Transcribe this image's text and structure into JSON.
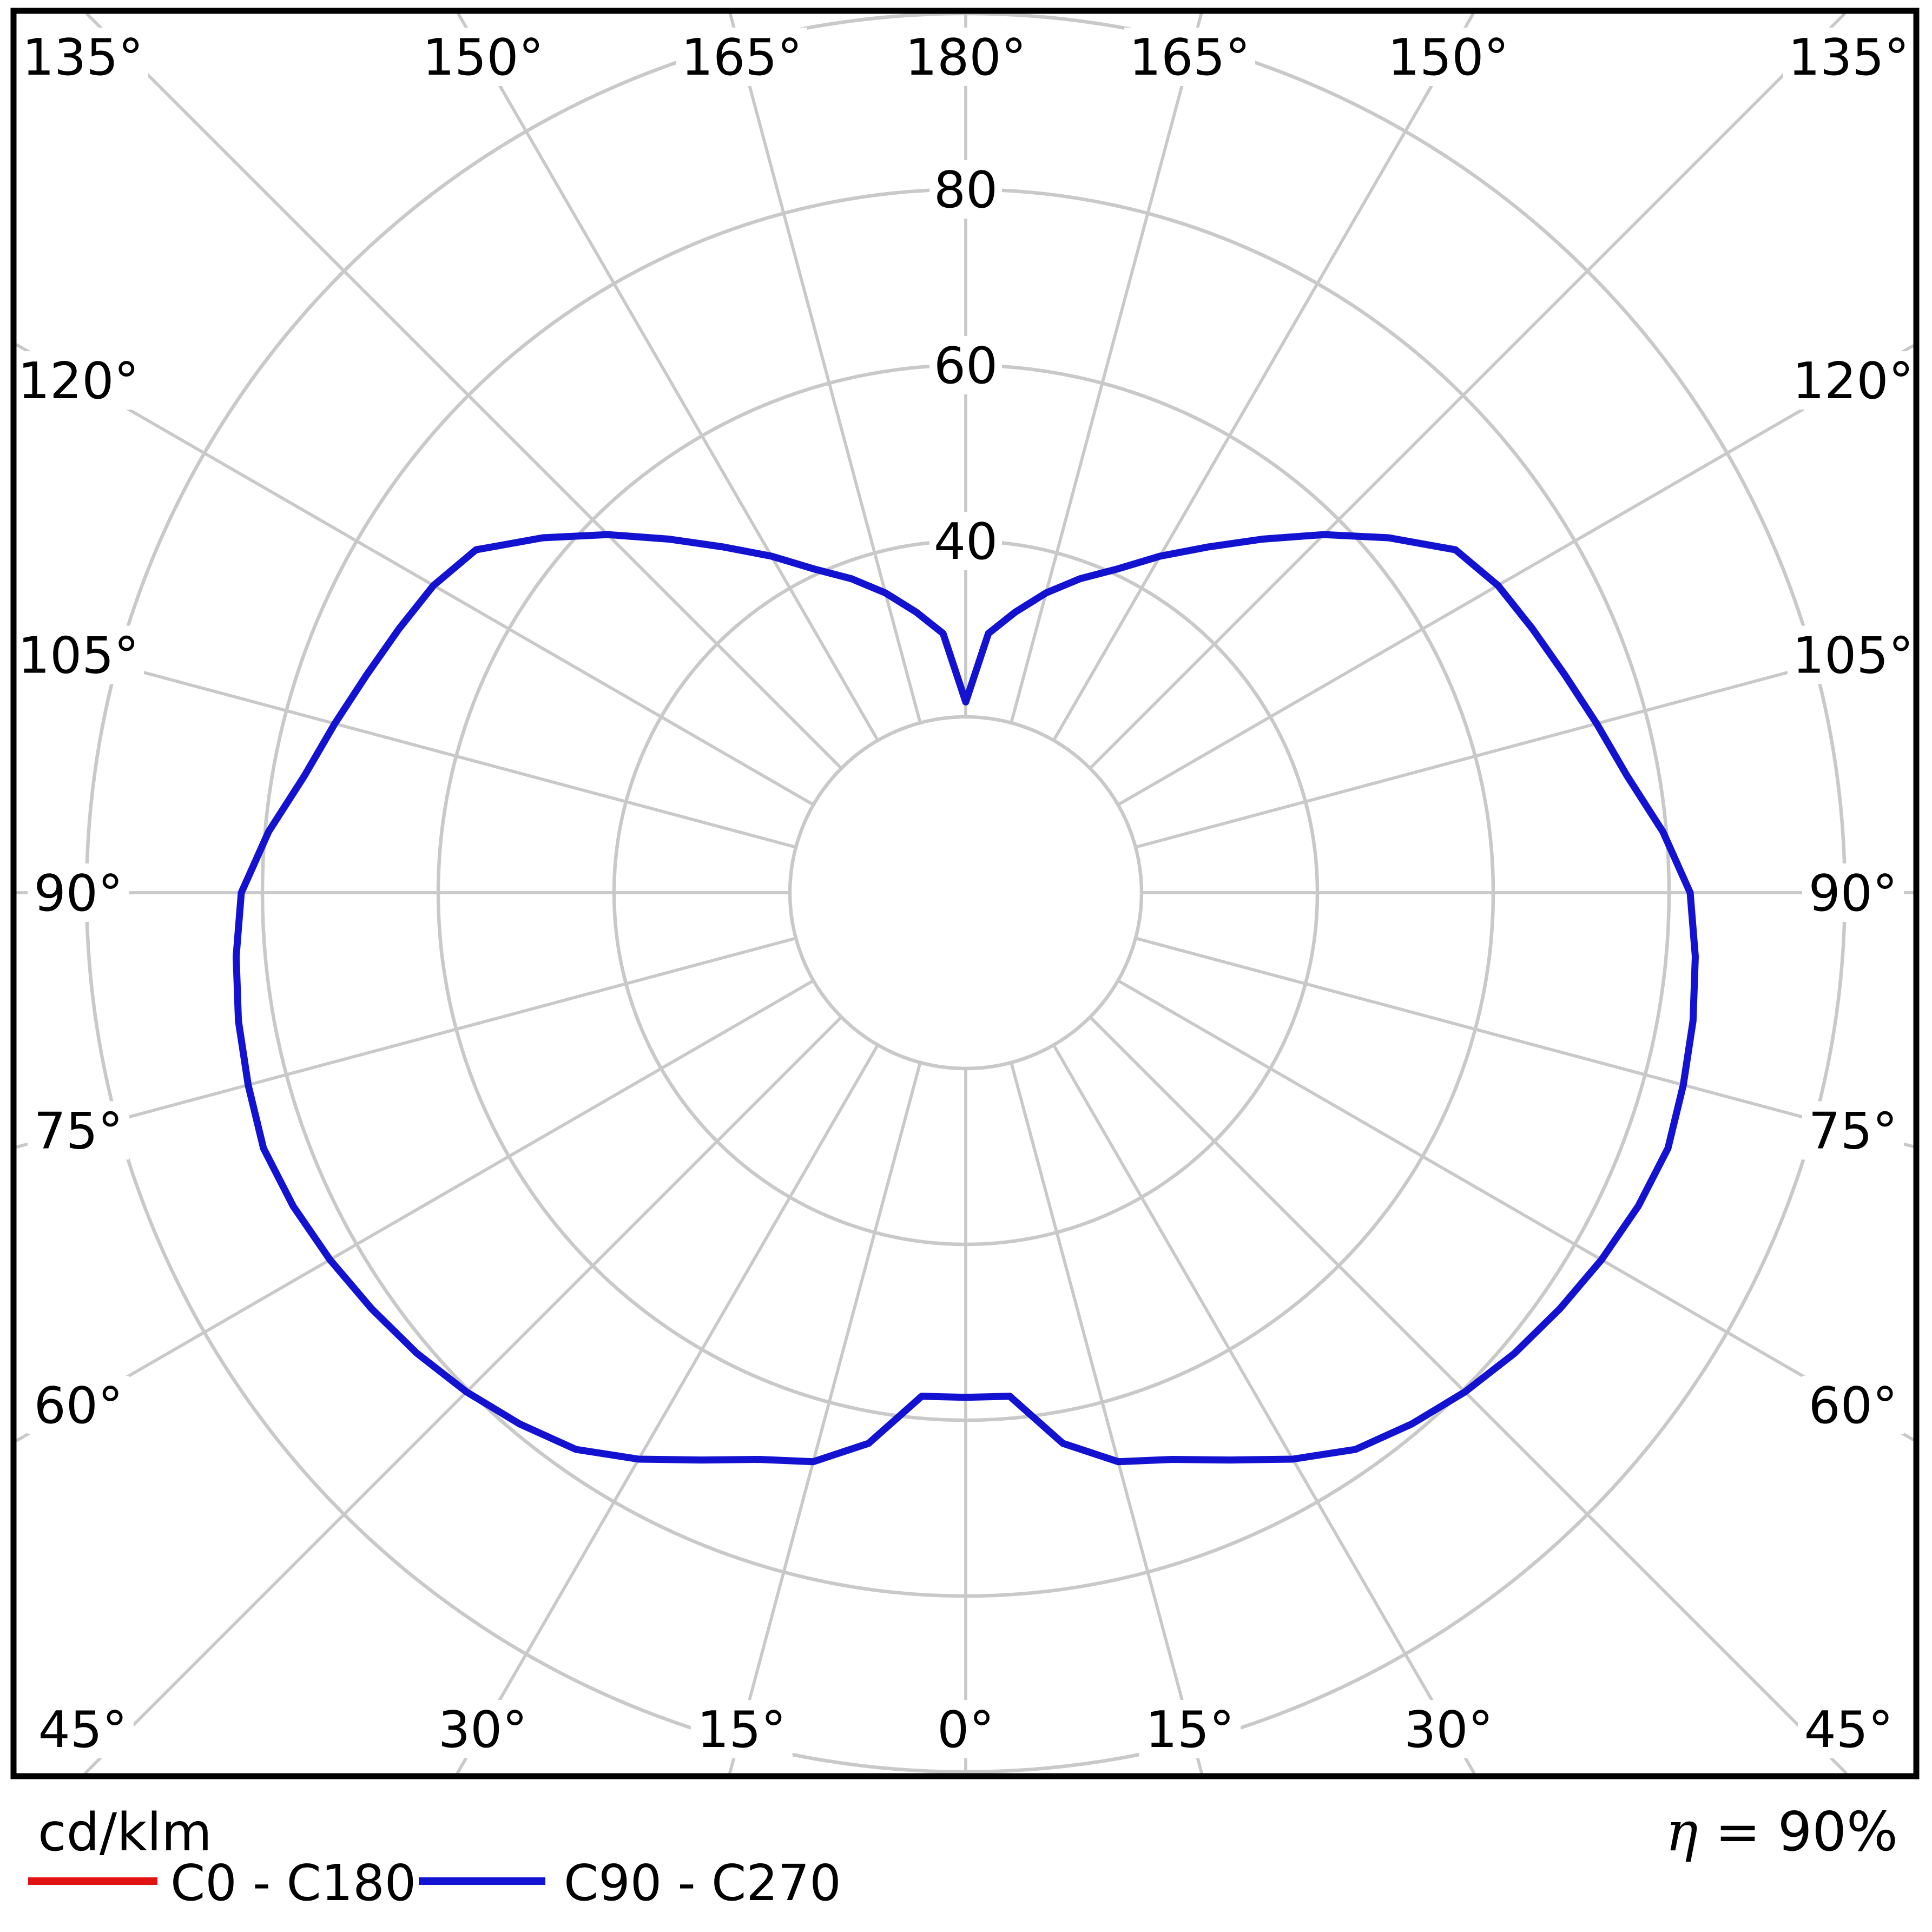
{
  "chart_data": {
    "type": "line",
    "polar": true,
    "description": "Photometric luminous intensity distribution polar diagram (0 deg at nadir/bottom, 180 deg at zenith/top, mirrored left-right)",
    "radial_unit_label": "cd/klm",
    "efficiency": {
      "symbol": "η",
      "rest": " = 90%",
      "full_text": "η = 90%"
    },
    "radial_axis": {
      "rings": [
        20,
        40,
        60,
        80,
        100
      ],
      "tick_labels": [
        "40",
        "60",
        "80"
      ],
      "max": 100
    },
    "angle_axis": {
      "step_deg": 15,
      "zero_position": "bottom",
      "labels_top": [
        "135°",
        "150°",
        "165°",
        "180°",
        "165°",
        "150°",
        "135°"
      ],
      "labels_left": [
        "120°",
        "105°",
        "90°",
        "75°",
        "60°"
      ],
      "labels_right": [
        "120°",
        "105°",
        "90°",
        "75°",
        "60°"
      ],
      "labels_bottom": [
        "45°",
        "30°",
        "15°",
        "0°",
        "15°",
        "30°",
        "45°"
      ]
    },
    "legend": [
      {
        "label": "C0 - C180",
        "color": "#e11212"
      },
      {
        "label": "C90 - C270",
        "color": "#1212d0"
      }
    ],
    "series": [
      {
        "name": "C0 - C180",
        "color": "#e11212",
        "visible": false,
        "points": []
      },
      {
        "name": "C90 - C270",
        "color": "#1212d0",
        "visible": true,
        "symmetric": true,
        "points": [
          [
            0,
            57.4
          ],
          [
            5,
            57.5
          ],
          [
            10,
            63.6
          ],
          [
            15,
            67.0
          ],
          [
            20,
            68.6
          ],
          [
            25,
            71.2
          ],
          [
            30,
            74.4
          ],
          [
            35,
            77.3
          ],
          [
            40,
            78.9
          ],
          [
            45,
            80.3
          ],
          [
            50,
            81.5
          ],
          [
            55,
            82.5
          ],
          [
            60,
            83.5
          ],
          [
            65,
            84.4
          ],
          [
            70,
            85.0
          ],
          [
            75,
            84.5
          ],
          [
            80,
            84.0
          ],
          [
            85,
            83.3
          ],
          [
            90,
            82.4
          ],
          [
            95,
            79.6
          ],
          [
            100,
            76.4
          ],
          [
            105,
            74.3
          ],
          [
            110,
            72.5
          ],
          [
            115,
            71.1
          ],
          [
            120,
            69.9
          ],
          [
            125,
            68.0
          ],
          [
            130,
            62.8
          ],
          [
            135,
            57.6
          ],
          [
            140,
            52.5
          ],
          [
            145,
            48.0
          ],
          [
            150,
            44.2
          ],
          [
            155,
            40.6
          ],
          [
            160,
            38.0
          ],
          [
            165,
            35.3
          ],
          [
            170,
            32.4
          ],
          [
            175,
            29.6
          ],
          [
            180,
            21.7
          ]
        ]
      }
    ],
    "colors": {
      "grid": "#c9c9c9",
      "border": "#000000",
      "background": "#ffffff"
    }
  }
}
